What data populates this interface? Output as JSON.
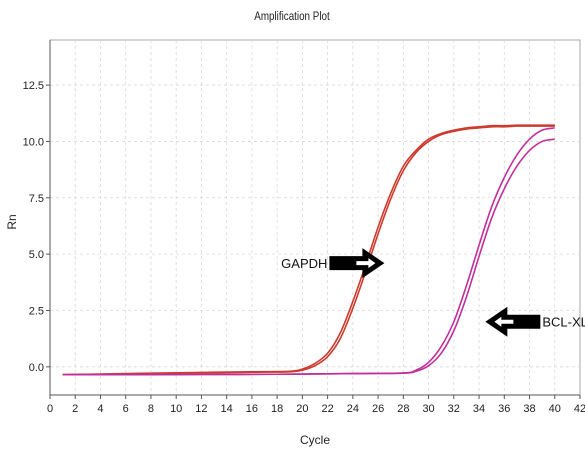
{
  "chart_data": {
    "type": "line",
    "title": "Amplification Plot",
    "xlabel": "Cycle",
    "ylabel": "Rn",
    "xlim": [
      0,
      42
    ],
    "ylim": [
      -1.25,
      14.5
    ],
    "xticks": [
      0,
      2,
      4,
      6,
      8,
      10,
      12,
      14,
      16,
      18,
      20,
      22,
      24,
      26,
      28,
      30,
      32,
      34,
      36,
      38,
      40,
      42
    ],
    "yticks": [
      0.0,
      2.5,
      5.0,
      7.5,
      10.0,
      12.5
    ],
    "ytick_labels": [
      "0.0",
      "2.5",
      "5.0",
      "7.5",
      "10.0",
      "12.5"
    ],
    "grid": true,
    "series": [
      {
        "color": "#cc3b2e",
        "x": [
          1,
          4,
          8,
          12,
          16,
          19,
          20,
          21,
          22,
          23,
          24,
          25,
          26,
          27,
          28,
          29,
          30,
          31,
          32,
          33,
          34,
          35,
          36,
          37,
          38,
          39,
          40
        ],
        "y": [
          -0.35,
          -0.32,
          -0.28,
          -0.25,
          -0.22,
          -0.2,
          -0.1,
          0.15,
          0.6,
          1.5,
          2.9,
          4.5,
          6.2,
          7.7,
          8.9,
          9.6,
          10.1,
          10.35,
          10.5,
          10.6,
          10.65,
          10.7,
          10.7,
          10.72,
          10.72,
          10.72,
          10.72
        ]
      },
      {
        "color": "#cc3b2e",
        "x": [
          1,
          4,
          8,
          12,
          16,
          19,
          20,
          21,
          22,
          23,
          24,
          25,
          26,
          27,
          28,
          29,
          30,
          31,
          32,
          33,
          34,
          35,
          36,
          37,
          38,
          39,
          40
        ],
        "y": [
          -0.35,
          -0.33,
          -0.3,
          -0.27,
          -0.24,
          -0.22,
          -0.15,
          0.05,
          0.45,
          1.25,
          2.6,
          4.2,
          5.9,
          7.45,
          8.7,
          9.5,
          10.0,
          10.3,
          10.45,
          10.55,
          10.6,
          10.65,
          10.65,
          10.68,
          10.68,
          10.68,
          10.68
        ]
      },
      {
        "color": "#c0309c",
        "x": [
          1,
          6,
          12,
          18,
          24,
          28,
          29,
          30,
          31,
          32,
          33,
          34,
          35,
          36,
          37,
          38,
          39,
          40
        ],
        "y": [
          -0.35,
          -0.35,
          -0.34,
          -0.33,
          -0.3,
          -0.28,
          -0.2,
          0.05,
          0.6,
          1.6,
          3.1,
          4.9,
          6.6,
          7.9,
          8.9,
          9.6,
          10.0,
          10.1
        ]
      },
      {
        "color": "#c0309c",
        "x": [
          1,
          6,
          12,
          18,
          24,
          28,
          29,
          30,
          31,
          32,
          33,
          34,
          35,
          36,
          37,
          38,
          39,
          40
        ],
        "y": [
          -0.35,
          -0.35,
          -0.34,
          -0.33,
          -0.3,
          -0.27,
          -0.15,
          0.2,
          0.9,
          2.0,
          3.6,
          5.4,
          7.1,
          8.4,
          9.4,
          10.1,
          10.5,
          10.6
        ]
      }
    ],
    "annotations": [
      {
        "label": "GAPDH",
        "arrow": "right",
        "x": 26.5,
        "y": 4.6
      },
      {
        "label": "BCL-XL",
        "arrow": "left",
        "x": 34.5,
        "y": 2.0
      }
    ]
  }
}
